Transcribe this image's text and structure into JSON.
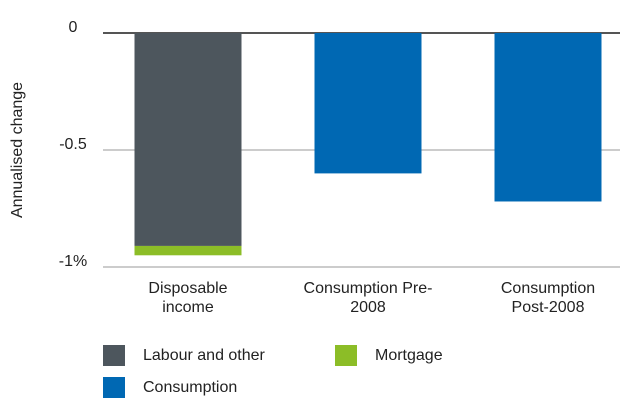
{
  "chart_data": {
    "type": "bar",
    "stacked": true,
    "y_label": "Annualised change",
    "categories": [
      "Disposable income",
      "Consumption Pre-2008",
      "Consumption Post-2008"
    ],
    "series": [
      {
        "name": "Labour and other",
        "color": "#4d565d",
        "values": [
          -0.91,
          null,
          null
        ]
      },
      {
        "name": "Mortgage",
        "color": "#8cbd27",
        "values": [
          -0.04,
          null,
          null
        ]
      },
      {
        "name": "Consumption",
        "color": "#0068b3",
        "values": [
          null,
          -0.6,
          -0.72
        ]
      }
    ],
    "ylim": [
      -1,
      0
    ],
    "yticks": [
      0,
      -0.5,
      {
        "value": -1,
        "label": "-1%"
      }
    ],
    "grid": true
  }
}
